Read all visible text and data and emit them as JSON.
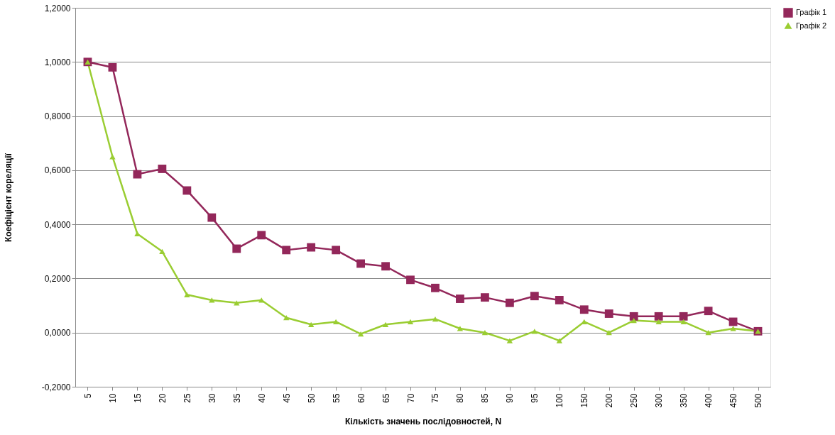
{
  "chart_data": {
    "type": "line",
    "xlabel": "Кількість значень послідовностей, N",
    "ylabel": "Коефіцієнт кореляції",
    "categories": [
      "5",
      "10",
      "15",
      "20",
      "25",
      "30",
      "35",
      "40",
      "45",
      "50",
      "55",
      "60",
      "65",
      "70",
      "75",
      "80",
      "85",
      "90",
      "95",
      "100",
      "150",
      "200",
      "250",
      "300",
      "350",
      "400",
      "450",
      "500"
    ],
    "series": [
      {
        "name": "Графік 1",
        "color": "#93275a",
        "marker": "square",
        "values": [
          1.0,
          0.98,
          0.585,
          0.605,
          0.525,
          0.425,
          0.31,
          0.36,
          0.305,
          0.315,
          0.305,
          0.255,
          0.245,
          0.195,
          0.165,
          0.125,
          0.13,
          0.11,
          0.135,
          0.12,
          0.085,
          0.07,
          0.06,
          0.06,
          0.06,
          0.08,
          0.04,
          0.005
        ]
      },
      {
        "name": "Графік 2",
        "color": "#9acd32",
        "marker": "triangle",
        "values": [
          1.0,
          0.65,
          0.365,
          0.3,
          0.14,
          0.12,
          0.11,
          0.12,
          0.055,
          0.03,
          0.04,
          -0.005,
          0.03,
          0.04,
          0.05,
          0.015,
          0.0,
          -0.03,
          0.005,
          -0.03,
          0.04,
          0.0,
          0.045,
          0.04,
          0.04,
          0.0,
          0.015,
          0.005
        ]
      }
    ],
    "ylim": [
      -0.2,
      1.2
    ],
    "yticks": [
      {
        "value": -0.2,
        "label": "-0,2000"
      },
      {
        "value": 0,
        "label": "0,0000"
      },
      {
        "value": 0.2,
        "label": "0,2000"
      },
      {
        "value": 0.4,
        "label": "0,4000"
      },
      {
        "value": 0.6,
        "label": "0,6000"
      },
      {
        "value": 0.8,
        "label": "0,8000"
      },
      {
        "value": 1.0,
        "label": "1,0000"
      },
      {
        "value": 1.2,
        "label": "1,2000"
      }
    ],
    "grid": "y",
    "legend": "right",
    "line_style": "solid"
  }
}
